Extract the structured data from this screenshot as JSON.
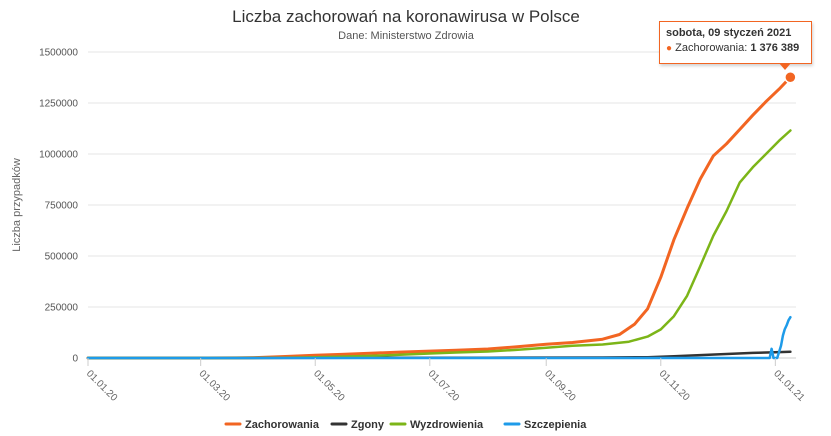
{
  "chart_data": {
    "type": "line",
    "title": "Liczba zachorowań na koronawirusa w Polsce",
    "subtitle": "Dane: Ministerstwo Zdrowia",
    "ylabel": "Liczba przypadków",
    "xlabel": "",
    "ylim": [
      0,
      1500000
    ],
    "yticks": [
      0,
      250000,
      500000,
      750000,
      1000000,
      1250000,
      1500000
    ],
    "ytick_labels": [
      "0",
      "250000",
      "500000",
      "750000",
      "1000000",
      "1250000",
      "1500000"
    ],
    "xticks": [
      "2020-01-01",
      "2020-03-01",
      "2020-05-01",
      "2020-07-01",
      "2020-09-01",
      "2020-11-01",
      "2021-01-01"
    ],
    "xtick_labels": [
      "01.01.20",
      "01.03.20",
      "01.05.20",
      "01.07.20",
      "01.09.20",
      "01.11.20",
      "01.01.21"
    ],
    "xlim": [
      "2020-01-01",
      "2021-01-12"
    ],
    "grid": true,
    "legend_position": "bottom",
    "series": [
      {
        "name": "Zachorowania",
        "color": "#f26522",
        "points": [
          [
            "2020-01-01",
            0
          ],
          [
            "2020-03-04",
            0
          ],
          [
            "2020-03-20",
            400
          ],
          [
            "2020-04-01",
            2500
          ],
          [
            "2020-04-15",
            7500
          ],
          [
            "2020-05-01",
            13000
          ],
          [
            "2020-05-15",
            17500
          ],
          [
            "2020-06-01",
            24000
          ],
          [
            "2020-06-15",
            29000
          ],
          [
            "2020-07-01",
            34000
          ],
          [
            "2020-07-15",
            38000
          ],
          [
            "2020-08-01",
            44000
          ],
          [
            "2020-08-15",
            54000
          ],
          [
            "2020-09-01",
            67000
          ],
          [
            "2020-09-15",
            76000
          ],
          [
            "2020-10-01",
            92000
          ],
          [
            "2020-10-10",
            115000
          ],
          [
            "2020-10-18",
            165000
          ],
          [
            "2020-10-25",
            241000
          ],
          [
            "2020-11-01",
            396000
          ],
          [
            "2020-11-08",
            580000
          ],
          [
            "2020-11-15",
            734000
          ],
          [
            "2020-11-22",
            877000
          ],
          [
            "2020-11-29",
            991000
          ],
          [
            "2020-12-06",
            1050000
          ],
          [
            "2020-12-13",
            1120000
          ],
          [
            "2020-12-20",
            1190000
          ],
          [
            "2020-12-27",
            1257000
          ],
          [
            "2021-01-03",
            1318000
          ],
          [
            "2021-01-09",
            1376389
          ]
        ]
      },
      {
        "name": "Zgony",
        "color": "#333333",
        "points": [
          [
            "2020-01-01",
            0
          ],
          [
            "2020-03-12",
            0
          ],
          [
            "2020-04-15",
            300
          ],
          [
            "2020-06-01",
            1100
          ],
          [
            "2020-08-01",
            1700
          ],
          [
            "2020-10-01",
            2600
          ],
          [
            "2020-10-25",
            4000
          ],
          [
            "2020-11-08",
            8500
          ],
          [
            "2020-11-22",
            14000
          ],
          [
            "2020-12-06",
            19500
          ],
          [
            "2020-12-20",
            25000
          ],
          [
            "2021-01-03",
            29000
          ],
          [
            "2021-01-09",
            30500
          ]
        ]
      },
      {
        "name": "Wyzdrowienia",
        "color": "#7cb518",
        "points": [
          [
            "2020-01-01",
            0
          ],
          [
            "2020-03-15",
            0
          ],
          [
            "2020-04-01",
            300
          ],
          [
            "2020-04-15",
            1500
          ],
          [
            "2020-05-01",
            4000
          ],
          [
            "2020-05-15",
            7000
          ],
          [
            "2020-06-01",
            11000
          ],
          [
            "2020-06-15",
            16000
          ],
          [
            "2020-07-01",
            22000
          ],
          [
            "2020-07-15",
            27000
          ],
          [
            "2020-08-01",
            32000
          ],
          [
            "2020-08-15",
            39000
          ],
          [
            "2020-09-01",
            50000
          ],
          [
            "2020-09-15",
            60000
          ],
          [
            "2020-10-01",
            66000
          ],
          [
            "2020-10-15",
            80000
          ],
          [
            "2020-10-25",
            105000
          ],
          [
            "2020-11-01",
            140000
          ],
          [
            "2020-11-08",
            205000
          ],
          [
            "2020-11-15",
            305000
          ],
          [
            "2020-11-22",
            450000
          ],
          [
            "2020-11-29",
            600000
          ],
          [
            "2020-12-06",
            720000
          ],
          [
            "2020-12-13",
            860000
          ],
          [
            "2020-12-20",
            935000
          ],
          [
            "2020-12-27",
            1000000
          ],
          [
            "2021-01-03",
            1065000
          ],
          [
            "2021-01-09",
            1115000
          ]
        ]
      },
      {
        "name": "Szczepienia",
        "color": "#1e9be9",
        "points": [
          [
            "2020-12-27",
            0
          ],
          [
            "2020-12-29",
            0
          ],
          [
            "2020-12-30",
            45000
          ],
          [
            "2020-12-31",
            0
          ],
          [
            "2021-01-02",
            0
          ],
          [
            "2021-01-03",
            30000
          ],
          [
            "2021-01-04",
            60000
          ],
          [
            "2021-01-05",
            110000
          ],
          [
            "2021-01-06",
            140000
          ],
          [
            "2021-01-07",
            160000
          ],
          [
            "2021-01-08",
            185000
          ],
          [
            "2021-01-09",
            200000
          ]
        ]
      }
    ]
  },
  "tooltip": {
    "date": "sobota, 09 styczeń 2021",
    "series_label": "Zachorowania: ",
    "value": "1 376 389",
    "color": "#f26522"
  }
}
